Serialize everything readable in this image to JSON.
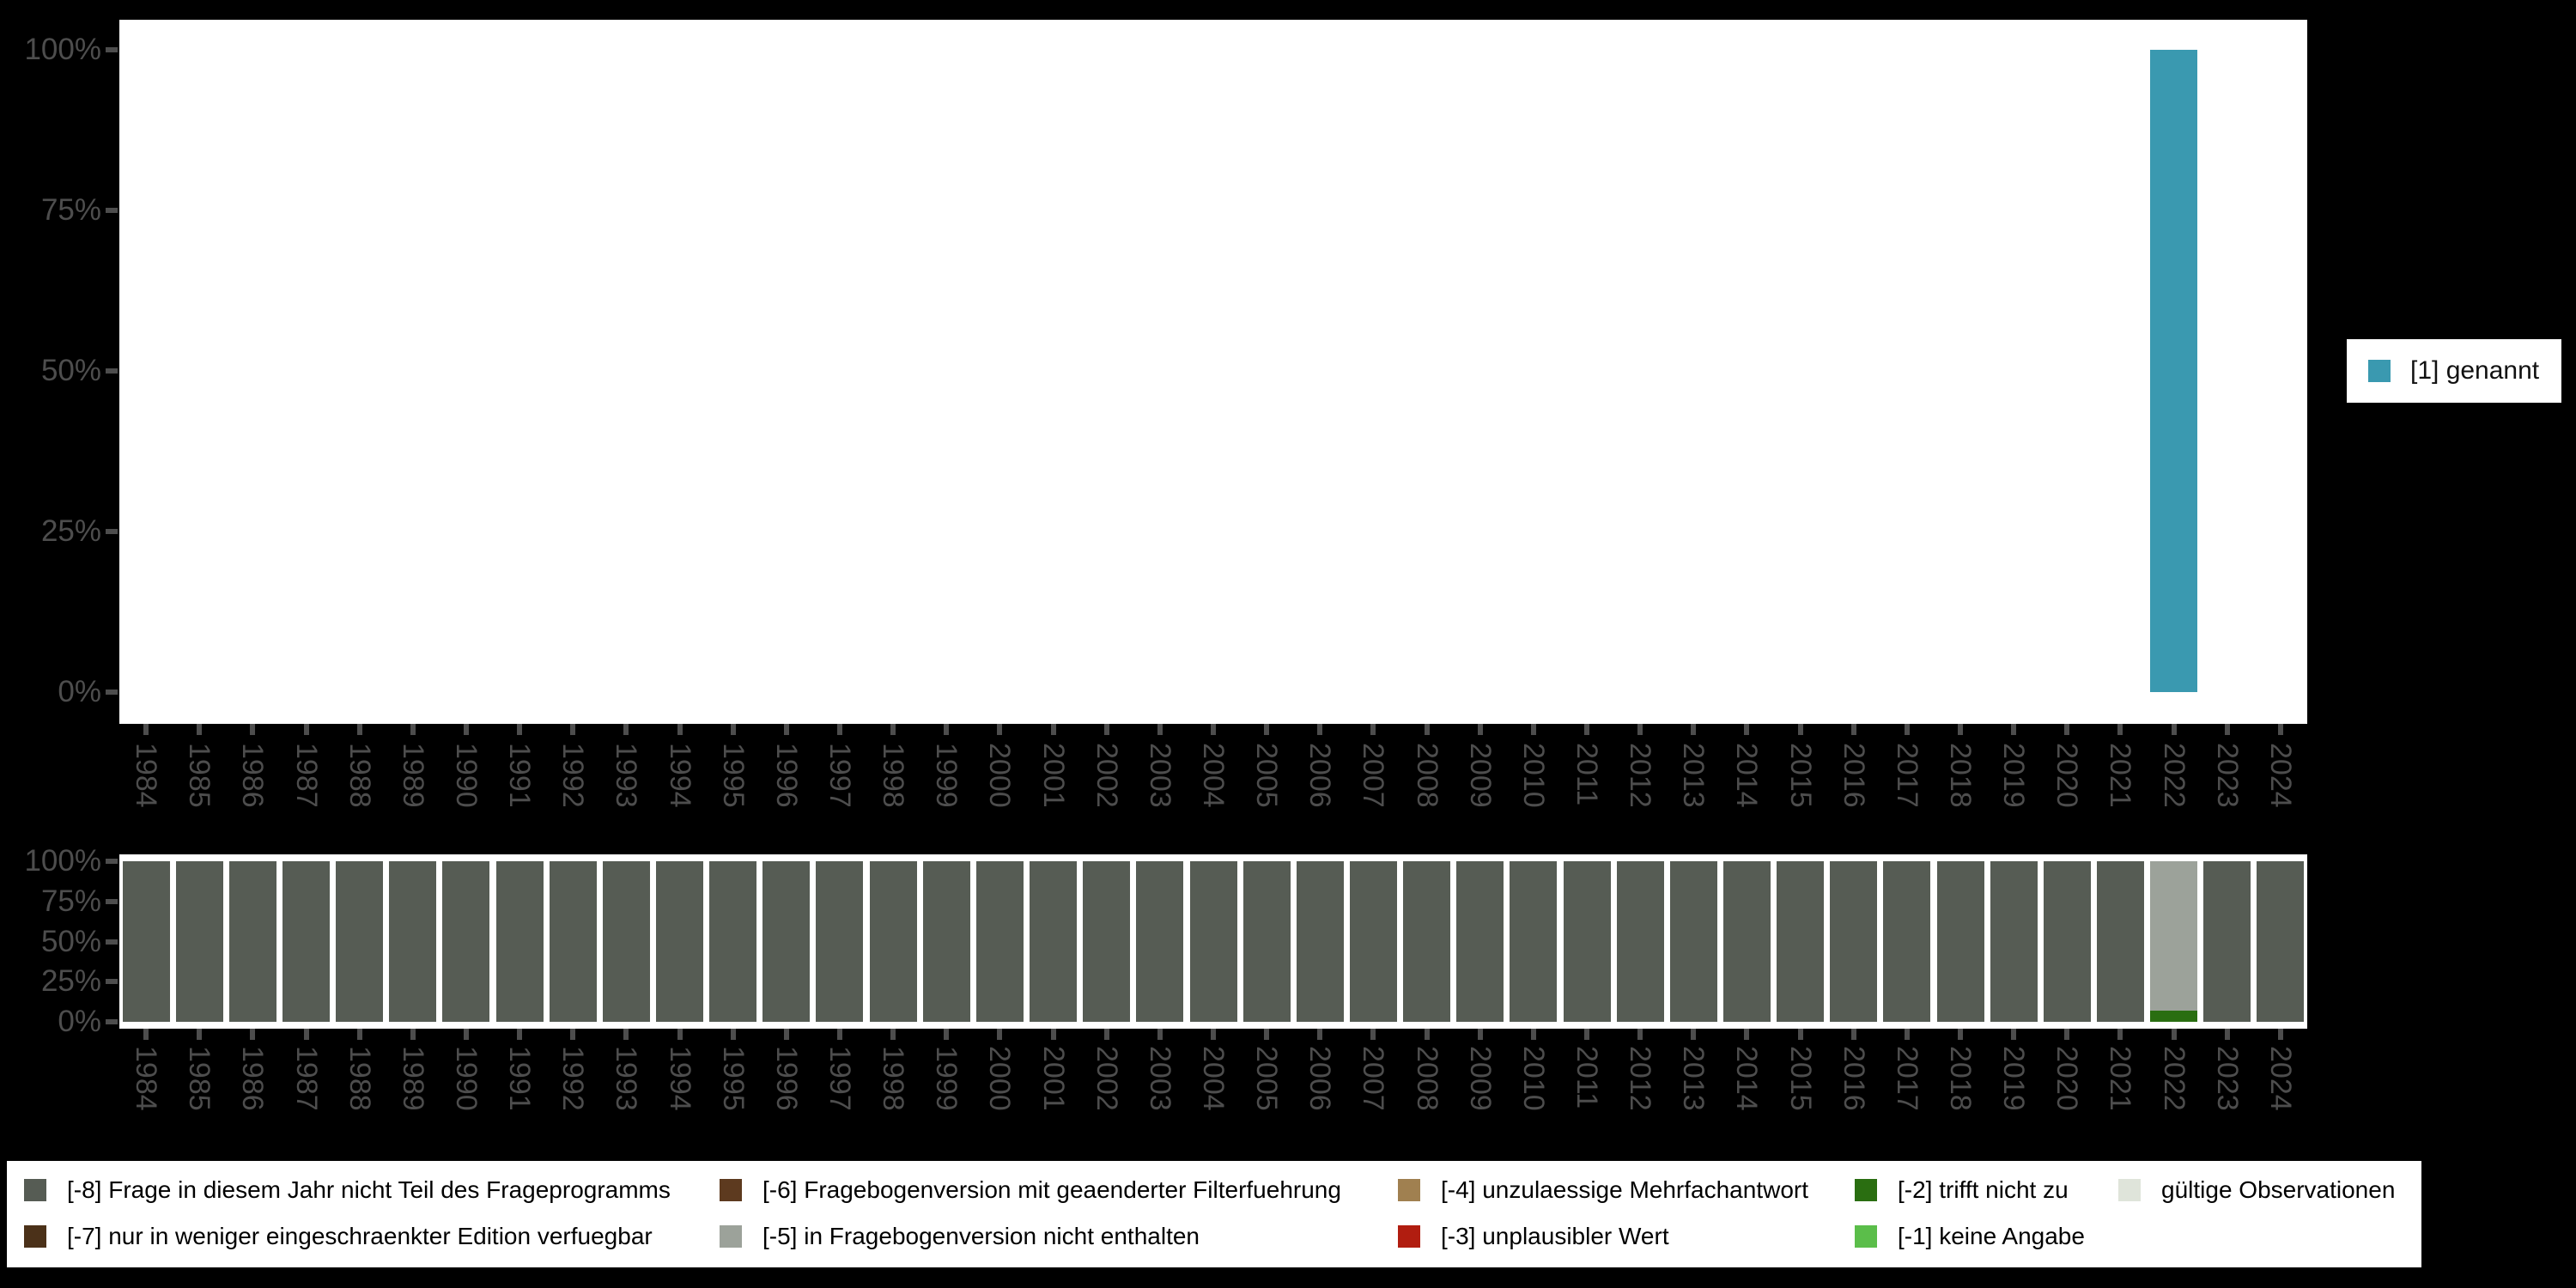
{
  "colors": {
    "background": "#000000",
    "panel": "#ffffff",
    "axis_text": "#4d4d4d",
    "genannt": "#3a99b0",
    "missing_minus8": "#565c54",
    "missing_minus7": "#4b3119",
    "missing_minus6": "#5d3a1f",
    "missing_minus5": "#9ca29a",
    "missing_minus4": "#a08050",
    "missing_minus3": "#b11d10",
    "missing_minus2": "#2a6e11",
    "missing_minus1": "#5bbe4a",
    "valid_observations": "#dfe4da"
  },
  "legend_right": {
    "label": "[1] genannt",
    "color": "#3a99b0"
  },
  "legend_bottom": {
    "items": [
      {
        "code": "-8",
        "label": "[-8] Frage in diesem Jahr nicht Teil des Frageprogramms",
        "color": "#565c54"
      },
      {
        "code": "-7",
        "label": "[-7] nur in weniger eingeschraenkter Edition verfuegbar",
        "color": "#4b3119"
      },
      {
        "code": "-6",
        "label": "[-6] Fragebogenversion mit geaenderter Filterfuehrung",
        "color": "#5d3a1f"
      },
      {
        "code": "-5",
        "label": "[-5] in Fragebogenversion nicht enthalten",
        "color": "#9ca29a"
      },
      {
        "code": "-4",
        "label": "[-4] unzulaessige Mehrfachantwort",
        "color": "#a08050"
      },
      {
        "code": "-3",
        "label": "[-3] unplausibler Wert",
        "color": "#b11d10"
      },
      {
        "code": "-2",
        "label": "[-2] trifft nicht zu",
        "color": "#2a6e11"
      },
      {
        "code": "-1",
        "label": "[-1] keine Angabe",
        "color": "#5bbe4a"
      },
      {
        "code": "valid",
        "label": "gültige Observationen",
        "color": "#dfe4da"
      }
    ]
  },
  "chart_data": [
    {
      "type": "bar",
      "name": "value-distribution-by-year",
      "title": "",
      "xlabel": "",
      "ylabel": "",
      "ylim": [
        0,
        100
      ],
      "grid": false,
      "legend_position": "right",
      "categories": [
        1984,
        1985,
        1986,
        1987,
        1988,
        1989,
        1990,
        1991,
        1992,
        1993,
        1994,
        1995,
        1996,
        1997,
        1998,
        1999,
        2000,
        2001,
        2002,
        2003,
        2004,
        2005,
        2006,
        2007,
        2008,
        2009,
        2010,
        2011,
        2012,
        2013,
        2014,
        2015,
        2016,
        2017,
        2018,
        2019,
        2020,
        2021,
        2022,
        2023,
        2024
      ],
      "axes": {
        "y_tick_labels": [
          "100%",
          "75%",
          "50%",
          "25%",
          "0%"
        ],
        "y_tick_values": [
          100,
          75,
          50,
          25,
          0
        ]
      },
      "series": [
        {
          "name": "[1] genannt",
          "color": "#3a99b0",
          "values": [
            null,
            null,
            null,
            null,
            null,
            null,
            null,
            null,
            null,
            null,
            null,
            null,
            null,
            null,
            null,
            null,
            null,
            null,
            null,
            null,
            null,
            null,
            null,
            null,
            null,
            null,
            null,
            null,
            null,
            null,
            null,
            null,
            null,
            null,
            null,
            null,
            null,
            null,
            100,
            null,
            null
          ]
        }
      ]
    },
    {
      "type": "stacked-bar",
      "name": "missing-values-by-year",
      "title": "",
      "xlabel": "",
      "ylabel": "",
      "ylim": [
        0,
        100
      ],
      "grid": false,
      "legend_position": "bottom",
      "categories": [
        1984,
        1985,
        1986,
        1987,
        1988,
        1989,
        1990,
        1991,
        1992,
        1993,
        1994,
        1995,
        1996,
        1997,
        1998,
        1999,
        2000,
        2001,
        2002,
        2003,
        2004,
        2005,
        2006,
        2007,
        2008,
        2009,
        2010,
        2011,
        2012,
        2013,
        2014,
        2015,
        2016,
        2017,
        2018,
        2019,
        2020,
        2021,
        2022,
        2023,
        2024
      ],
      "axes": {
        "y_tick_labels": [
          "100%",
          "75%",
          "50%",
          "25%",
          "0%"
        ],
        "y_tick_values": [
          100,
          75,
          50,
          25,
          0
        ]
      },
      "stack_order": "bottom-to-top",
      "series": [
        {
          "name": "[-2] trifft nicht zu",
          "color": "#2a6e11",
          "values": [
            0,
            0,
            0,
            0,
            0,
            0,
            0,
            0,
            0,
            0,
            0,
            0,
            0,
            0,
            0,
            0,
            0,
            0,
            0,
            0,
            0,
            0,
            0,
            0,
            0,
            0,
            0,
            0,
            0,
            0,
            0,
            0,
            0,
            0,
            0,
            0,
            0,
            0,
            7,
            0,
            0
          ]
        },
        {
          "name": "[-5] in Fragebogenversion nicht enthalten",
          "color": "#9ca29a",
          "values": [
            0,
            0,
            0,
            0,
            0,
            0,
            0,
            0,
            0,
            0,
            0,
            0,
            0,
            0,
            0,
            0,
            0,
            0,
            0,
            0,
            0,
            0,
            0,
            0,
            0,
            0,
            0,
            0,
            0,
            0,
            0,
            0,
            0,
            0,
            0,
            0,
            0,
            0,
            93,
            0,
            0
          ]
        },
        {
          "name": "[-8] Frage in diesem Jahr nicht Teil des Frageprogramms",
          "color": "#565c54",
          "values": [
            100,
            100,
            100,
            100,
            100,
            100,
            100,
            100,
            100,
            100,
            100,
            100,
            100,
            100,
            100,
            100,
            100,
            100,
            100,
            100,
            100,
            100,
            100,
            100,
            100,
            100,
            100,
            100,
            100,
            100,
            100,
            100,
            100,
            100,
            100,
            100,
            100,
            100,
            0,
            100,
            100
          ]
        }
      ]
    }
  ]
}
